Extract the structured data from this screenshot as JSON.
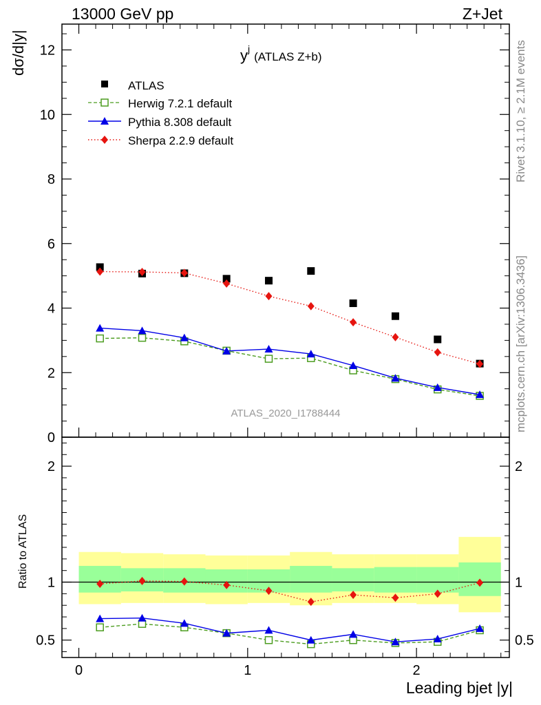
{
  "header": {
    "left": "13000 GeV pp",
    "right": "Z+Jet"
  },
  "side_texts": {
    "rivet": "Rivet 3.1.10, ≥ 2.1M events",
    "mcplots": "mcplots.cern.ch [arXiv:1306.3436]"
  },
  "watermark": "ATLAS_2020_I1788444",
  "chart_data": [
    {
      "type": "scatter",
      "title": "yʲ (ATLAS Z+b)",
      "title_main": "y",
      "title_sup": "j",
      "title_rest": "(ATLAS Z+b)",
      "xlabel": "",
      "ylabel": "dσ/d|y|",
      "xlim": [
        -0.1,
        2.55
      ],
      "ylim": [
        0,
        12.8
      ],
      "yticks": [
        0,
        2,
        4,
        6,
        8,
        10,
        12
      ],
      "ytick_labels": [
        "0",
        "2",
        "4",
        "6",
        "8",
        "10",
        "12"
      ],
      "legend_position": "top-left",
      "x": [
        0.125,
        0.375,
        0.625,
        0.875,
        1.125,
        1.375,
        1.625,
        1.875,
        2.125,
        2.375
      ],
      "series": [
        {
          "name": "ATLAS",
          "color": "#000000",
          "marker": "square-filled",
          "line": "none",
          "values": [
            5.27,
            5.07,
            5.08,
            4.91,
            4.85,
            5.15,
            4.15,
            3.75,
            3.03,
            2.28
          ]
        },
        {
          "name": "Herwig 7.2.1 default",
          "color": "#4b9c1f",
          "marker": "square-open",
          "line": "dashed",
          "values": [
            3.06,
            3.08,
            2.97,
            2.68,
            2.43,
            2.45,
            2.07,
            1.8,
            1.48,
            1.28
          ]
        },
        {
          "name": "Pythia 8.308 default",
          "color": "#0000e6",
          "marker": "triangle",
          "line": "solid",
          "values": [
            3.38,
            3.3,
            3.08,
            2.67,
            2.73,
            2.58,
            2.22,
            1.83,
            1.54,
            1.32
          ]
        },
        {
          "name": "Sherpa 2.2.9 default",
          "color": "#e6140f",
          "marker": "diamond",
          "line": "dotted",
          "values": [
            5.13,
            5.12,
            5.09,
            4.76,
            4.37,
            4.06,
            3.56,
            3.1,
            2.63,
            2.27
          ]
        }
      ]
    },
    {
      "type": "scatter",
      "title": "",
      "xlabel": "Leading bjet |y|",
      "ylabel": "Ratio to ATLAS",
      "xlim": [
        -0.1,
        2.55
      ],
      "ylim": [
        0.35,
        2.25
      ],
      "xticks": [
        0,
        1,
        2
      ],
      "xtick_labels": [
        "0",
        "1",
        "2"
      ],
      "yticks": [
        0.5,
        1,
        2
      ],
      "ytick_labels": [
        "0.5",
        "1",
        "2"
      ],
      "reference_line": 1,
      "bins": [
        [
          0,
          0.25
        ],
        [
          0.25,
          0.5
        ],
        [
          0.5,
          0.75
        ],
        [
          0.75,
          1.0
        ],
        [
          1.0,
          1.25
        ],
        [
          1.25,
          1.5
        ],
        [
          1.5,
          1.75
        ],
        [
          1.75,
          2.0
        ],
        [
          2.0,
          2.25
        ],
        [
          2.25,
          2.5
        ]
      ],
      "band_total": [
        [
          0.81,
          1.26
        ],
        [
          0.82,
          1.25
        ],
        [
          0.82,
          1.24
        ],
        [
          0.81,
          1.23
        ],
        [
          0.82,
          1.23
        ],
        [
          0.8,
          1.26
        ],
        [
          0.82,
          1.24
        ],
        [
          0.82,
          1.24
        ],
        [
          0.81,
          1.24
        ],
        [
          0.74,
          1.39
        ]
      ],
      "band_stat": [
        [
          0.91,
          1.14
        ],
        [
          0.92,
          1.12
        ],
        [
          0.91,
          1.12
        ],
        [
          0.91,
          1.11
        ],
        [
          0.91,
          1.11
        ],
        [
          0.91,
          1.14
        ],
        [
          0.92,
          1.12
        ],
        [
          0.91,
          1.13
        ],
        [
          0.91,
          1.13
        ],
        [
          0.88,
          1.17
        ]
      ],
      "band_total_color": "#ffff99",
      "band_stat_color": "#99ff99",
      "x": [
        0.125,
        0.375,
        0.625,
        0.875,
        1.125,
        1.375,
        1.625,
        1.875,
        2.125,
        2.375
      ],
      "series": [
        {
          "name": "Herwig 7.2.1 default",
          "color": "#4b9c1f",
          "marker": "square-open",
          "line": "dashed",
          "values": [
            0.61,
            0.64,
            0.61,
            0.56,
            0.5,
            0.465,
            0.5,
            0.475,
            0.485,
            0.585
          ]
        },
        {
          "name": "Pythia 8.308 default",
          "color": "#0000e6",
          "marker": "triangle",
          "line": "solid",
          "values": [
            0.685,
            0.69,
            0.645,
            0.56,
            0.585,
            0.5,
            0.55,
            0.485,
            0.51,
            0.6
          ]
        },
        {
          "name": "Sherpa 2.2.9 default",
          "color": "#e6140f",
          "marker": "diamond",
          "line": "dotted",
          "values": [
            0.985,
            1.01,
            1.005,
            0.975,
            0.925,
            0.83,
            0.89,
            0.865,
            0.9,
            0.995
          ]
        }
      ]
    }
  ]
}
